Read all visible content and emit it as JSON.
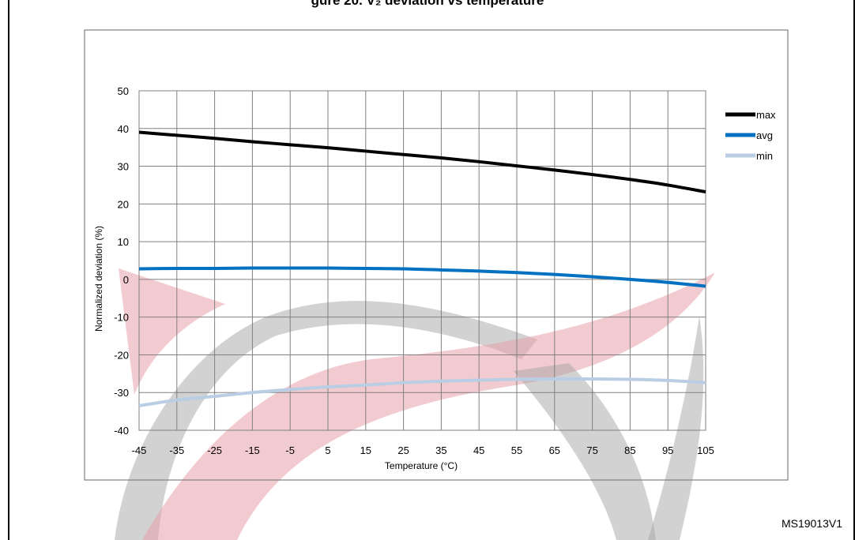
{
  "figure_id": "MS19013V1",
  "header_fragment": "gure 20. V₂ deviation vs temperature",
  "colors": {
    "max": "#000000",
    "avg": "#0070c0",
    "min": "#b9cde5",
    "watermark_red": "#e8a0aa",
    "watermark_gray": "#a6a6a6",
    "grid": "#808080"
  },
  "chart_data": {
    "type": "line",
    "xlabel": "Temperature (°C)",
    "ylabel": "Normalized deviation (%)",
    "x": [
      -45,
      -35,
      -25,
      -15,
      -5,
      5,
      15,
      25,
      35,
      45,
      55,
      65,
      75,
      85,
      95,
      105
    ],
    "xlim": [
      -45,
      105
    ],
    "ylim": [
      -40,
      50
    ],
    "yticks": [
      50,
      40,
      30,
      20,
      10,
      0,
      -10,
      -20,
      -30,
      -40
    ],
    "grid": true,
    "legend_position": "top-right",
    "series": [
      {
        "name": "max",
        "color": "#000000",
        "values": [
          39,
          38.2,
          37.4,
          36.5,
          35.7,
          34.9,
          34.0,
          33.1,
          32.2,
          31.2,
          30.1,
          29.0,
          27.8,
          26.5,
          25.0,
          23.2
        ]
      },
      {
        "name": "avg",
        "color": "#0070c0",
        "values": [
          2.8,
          2.9,
          2.9,
          3.0,
          3.0,
          3.0,
          2.9,
          2.8,
          2.5,
          2.2,
          1.8,
          1.3,
          0.7,
          0.0,
          -0.8,
          -1.8
        ]
      },
      {
        "name": "min",
        "color": "#b9cde5",
        "values": [
          -33.5,
          -32.0,
          -31.0,
          -30.0,
          -29.2,
          -28.5,
          -28.0,
          -27.4,
          -27.0,
          -26.7,
          -26.5,
          -26.4,
          -26.4,
          -26.5,
          -26.8,
          -27.4
        ]
      }
    ]
  }
}
